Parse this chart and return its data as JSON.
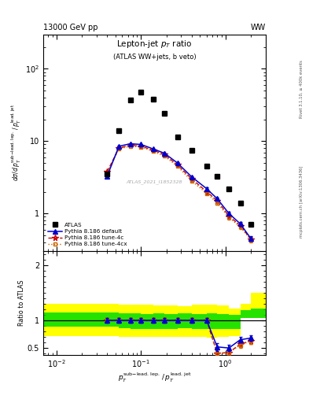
{
  "header_left": "13000 GeV pp",
  "header_right": "WW",
  "watermark": "ATLAS_2021_I1852328",
  "rivet_label": "Rivet 3.1.10, ≥ 400k events",
  "inspire_label": "mcplots.cern.ch [arXiv:1306.3436]",
  "atlas_x": [
    0.04,
    0.055,
    0.075,
    0.1,
    0.14,
    0.19,
    0.27,
    0.4,
    0.6,
    0.8,
    1.1,
    1.5,
    2.0
  ],
  "atlas_y": [
    3.5,
    14.0,
    37.0,
    48.0,
    38.0,
    24.0,
    11.5,
    7.5,
    4.5,
    3.3,
    2.2,
    1.4,
    0.7
  ],
  "py_x": [
    0.04,
    0.055,
    0.075,
    0.1,
    0.14,
    0.19,
    0.27,
    0.4,
    0.6,
    0.8,
    1.1,
    1.5,
    2.0
  ],
  "default_y": [
    3.3,
    8.5,
    9.2,
    9.0,
    7.8,
    6.8,
    5.0,
    3.2,
    2.2,
    1.6,
    1.0,
    0.72,
    0.45
  ],
  "default_yerr": [
    0.08,
    0.15,
    0.15,
    0.15,
    0.13,
    0.12,
    0.1,
    0.08,
    0.07,
    0.06,
    0.05,
    0.04,
    0.03
  ],
  "tune4c_y": [
    3.8,
    8.0,
    8.8,
    8.5,
    7.5,
    6.5,
    4.7,
    3.0,
    2.0,
    1.5,
    0.92,
    0.68,
    0.44
  ],
  "tune4c_yerr": [
    0.08,
    0.15,
    0.15,
    0.15,
    0.13,
    0.12,
    0.1,
    0.08,
    0.07,
    0.06,
    0.05,
    0.04,
    0.03
  ],
  "tune4cx_y": [
    3.6,
    7.8,
    8.5,
    8.3,
    7.2,
    6.2,
    4.5,
    2.8,
    1.9,
    1.4,
    0.88,
    0.65,
    0.43
  ],
  "tune4cx_yerr": [
    0.08,
    0.15,
    0.15,
    0.15,
    0.13,
    0.12,
    0.1,
    0.08,
    0.07,
    0.06,
    0.05,
    0.04,
    0.03
  ],
  "ratio_x": [
    0.04,
    0.055,
    0.075,
    0.1,
    0.14,
    0.19,
    0.27,
    0.4,
    0.6,
    0.8,
    1.1,
    1.5,
    2.0
  ],
  "ratio_default": [
    1.0,
    1.0,
    1.0,
    1.0,
    1.0,
    1.0,
    1.0,
    1.0,
    1.0,
    0.52,
    0.5,
    0.65,
    0.68
  ],
  "ratio_def_err": [
    0.04,
    0.04,
    0.04,
    0.04,
    0.04,
    0.04,
    0.04,
    0.04,
    0.04,
    0.07,
    0.06,
    0.05,
    0.05
  ],
  "ratio_4c": [
    1.0,
    1.0,
    1.0,
    1.0,
    1.0,
    1.0,
    1.0,
    1.0,
    1.0,
    0.4,
    0.42,
    0.57,
    0.63
  ],
  "ratio_4c_err": [
    0.04,
    0.04,
    0.04,
    0.04,
    0.04,
    0.04,
    0.04,
    0.04,
    0.04,
    0.07,
    0.06,
    0.05,
    0.05
  ],
  "ratio_4cx": [
    1.0,
    1.0,
    1.0,
    1.0,
    1.0,
    1.0,
    1.0,
    1.0,
    1.0,
    0.4,
    0.42,
    0.55,
    0.63
  ],
  "ratio_4cx_err": [
    0.04,
    0.04,
    0.04,
    0.04,
    0.04,
    0.04,
    0.04,
    0.04,
    0.04,
    0.07,
    0.06,
    0.05,
    0.05
  ],
  "band_edges": [
    0.007,
    0.04,
    0.055,
    0.075,
    0.1,
    0.14,
    0.19,
    0.27,
    0.4,
    0.6,
    0.8,
    1.1,
    1.5,
    2.0,
    3.0
  ],
  "green_lo": [
    0.88,
    0.88,
    0.86,
    0.85,
    0.85,
    0.84,
    0.85,
    0.86,
    0.85,
    0.84,
    0.85,
    0.85,
    1.05,
    1.05,
    1.05
  ],
  "green_hi": [
    1.14,
    1.14,
    1.13,
    1.13,
    1.12,
    1.13,
    1.12,
    1.13,
    1.12,
    1.13,
    1.12,
    1.1,
    1.18,
    1.22,
    1.22
  ],
  "yellow_lo": [
    0.72,
    0.72,
    0.7,
    0.7,
    0.7,
    0.7,
    0.7,
    0.7,
    0.7,
    0.68,
    0.7,
    0.72,
    1.05,
    1.05,
    1.05
  ],
  "yellow_hi": [
    1.3,
    1.3,
    1.28,
    1.28,
    1.28,
    1.27,
    1.27,
    1.26,
    1.28,
    1.28,
    1.27,
    1.22,
    1.3,
    1.5,
    1.5
  ],
  "color_default": "#0000cc",
  "color_4c": "#cc0000",
  "color_4cx": "#cc6600",
  "color_green": "#00dd00",
  "color_yellow": "#ffff00"
}
